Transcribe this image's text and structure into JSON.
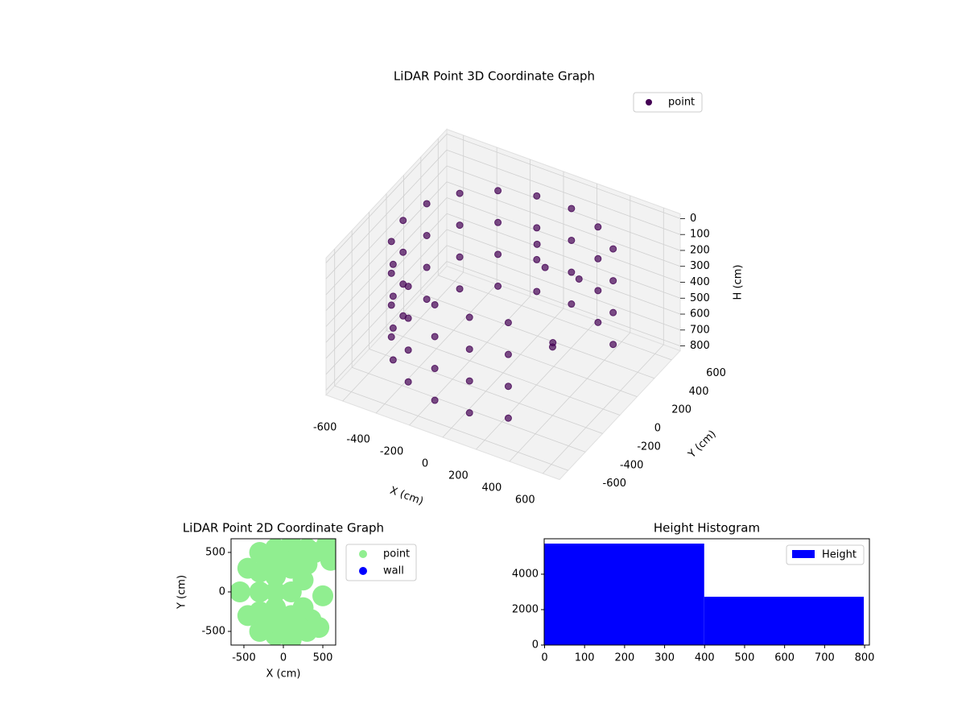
{
  "chart_data": [
    {
      "type": "scatter3d",
      "title": "LiDAR Point 3D Coordinate Graph",
      "xlabel": "X (cm)",
      "ylabel": "Y (cm)",
      "zlabel": "H (cm)",
      "xlim": [
        -700,
        700
      ],
      "ylim": [
        -700,
        700
      ],
      "zlim": [
        -30,
        830
      ],
      "z_inverted": true,
      "xticks": [
        -600,
        -400,
        -200,
        0,
        200,
        400,
        600
      ],
      "yticks": [
        -600,
        -400,
        -200,
        0,
        200,
        400,
        600
      ],
      "zticks": [
        0,
        100,
        200,
        300,
        400,
        500,
        600,
        700,
        800
      ],
      "grid": true,
      "legend": "upper right",
      "series": [
        {
          "name": "point",
          "color": "#440154",
          "x": [
            460,
            460,
            460,
            460,
            300,
            300,
            300,
            300,
            104,
            104,
            104,
            104,
            -104,
            -104,
            -104,
            -104,
            -300,
            -300,
            -300,
            -300,
            -460,
            -460,
            -460,
            -460,
            -564,
            -564,
            -564,
            -564,
            -600,
            -600,
            -600,
            -600,
            -564,
            -564,
            -564,
            -564,
            -460,
            -460,
            -460,
            -460,
            -300,
            -300,
            -300,
            -300,
            -104,
            -104,
            -104,
            -104,
            104,
            104,
            104,
            104,
            300,
            300,
            300,
            300,
            100,
            200,
            300,
            350,
            400
          ],
          "y": [
            386,
            386,
            386,
            386,
            520,
            520,
            520,
            520,
            591,
            591,
            591,
            591,
            591,
            591,
            591,
            591,
            520,
            520,
            520,
            520,
            386,
            386,
            386,
            386,
            205,
            205,
            205,
            205,
            0,
            0,
            0,
            0,
            -205,
            -205,
            -205,
            -205,
            -386,
            -386,
            -386,
            -386,
            -520,
            -520,
            -520,
            -520,
            -591,
            -591,
            -591,
            -591,
            -591,
            -591,
            -591,
            -591,
            -520,
            -520,
            -520,
            -520,
            200,
            100,
            300,
            -100,
            -200
          ],
          "z": [
            100,
            300,
            500,
            700,
            100,
            300,
            500,
            700,
            100,
            300,
            500,
            700,
            100,
            300,
            500,
            700,
            100,
            300,
            500,
            700,
            100,
            300,
            500,
            700,
            100,
            300,
            500,
            700,
            100,
            300,
            500,
            700,
            100,
            300,
            500,
            700,
            100,
            300,
            500,
            700,
            100,
            300,
            500,
            700,
            100,
            300,
            500,
            700,
            100,
            300,
            500,
            700,
            100,
            300,
            500,
            700,
            100,
            150,
            300,
            450,
            400
          ]
        }
      ]
    },
    {
      "type": "scatter",
      "title": "LiDAR Point 2D Coordinate Graph",
      "xlabel": "X (cm)",
      "ylabel": "Y (cm)",
      "xlim": [
        -663,
        663
      ],
      "ylim": [
        -673,
        673
      ],
      "xticks": [
        -500,
        0,
        500
      ],
      "yticks": [
        -500,
        0,
        500
      ],
      "legend": "outside right",
      "series": [
        {
          "name": "point",
          "color": "#90ee90",
          "x": [
            -550,
            -450,
            -450,
            -300,
            -300,
            -300,
            -300,
            -300,
            -100,
            -100,
            -100,
            -100,
            -100,
            100,
            100,
            100,
            100,
            100,
            300,
            300,
            300,
            250,
            250,
            400,
            450,
            500,
            550,
            600,
            350,
            0,
            0,
            -200,
            -200,
            200,
            200
          ],
          "y": [
            0,
            300,
            -300,
            500,
            -500,
            0,
            250,
            -250,
            550,
            -550,
            200,
            -200,
            0,
            600,
            -600,
            300,
            -300,
            0,
            550,
            -500,
            350,
            150,
            -200,
            500,
            -450,
            -50,
            600,
            400,
            -350,
            400,
            -400,
            400,
            -400,
            450,
            -450
          ]
        },
        {
          "name": "wall",
          "color": "#0000ff",
          "x": [],
          "y": []
        }
      ]
    },
    {
      "type": "histogram",
      "title": "Height Histogram",
      "bins": [
        0,
        399,
        798
      ],
      "counts": [
        5727,
        2727
      ],
      "xlim": [
        -1,
        812
      ],
      "ylim": [
        0,
        6000
      ],
      "xticks": [
        0,
        100,
        200,
        300,
        400,
        500,
        600,
        700,
        800
      ],
      "yticks": [
        0,
        2000,
        4000
      ],
      "legend": "upper right",
      "series_name": "Height",
      "color": "#0000ff"
    }
  ]
}
